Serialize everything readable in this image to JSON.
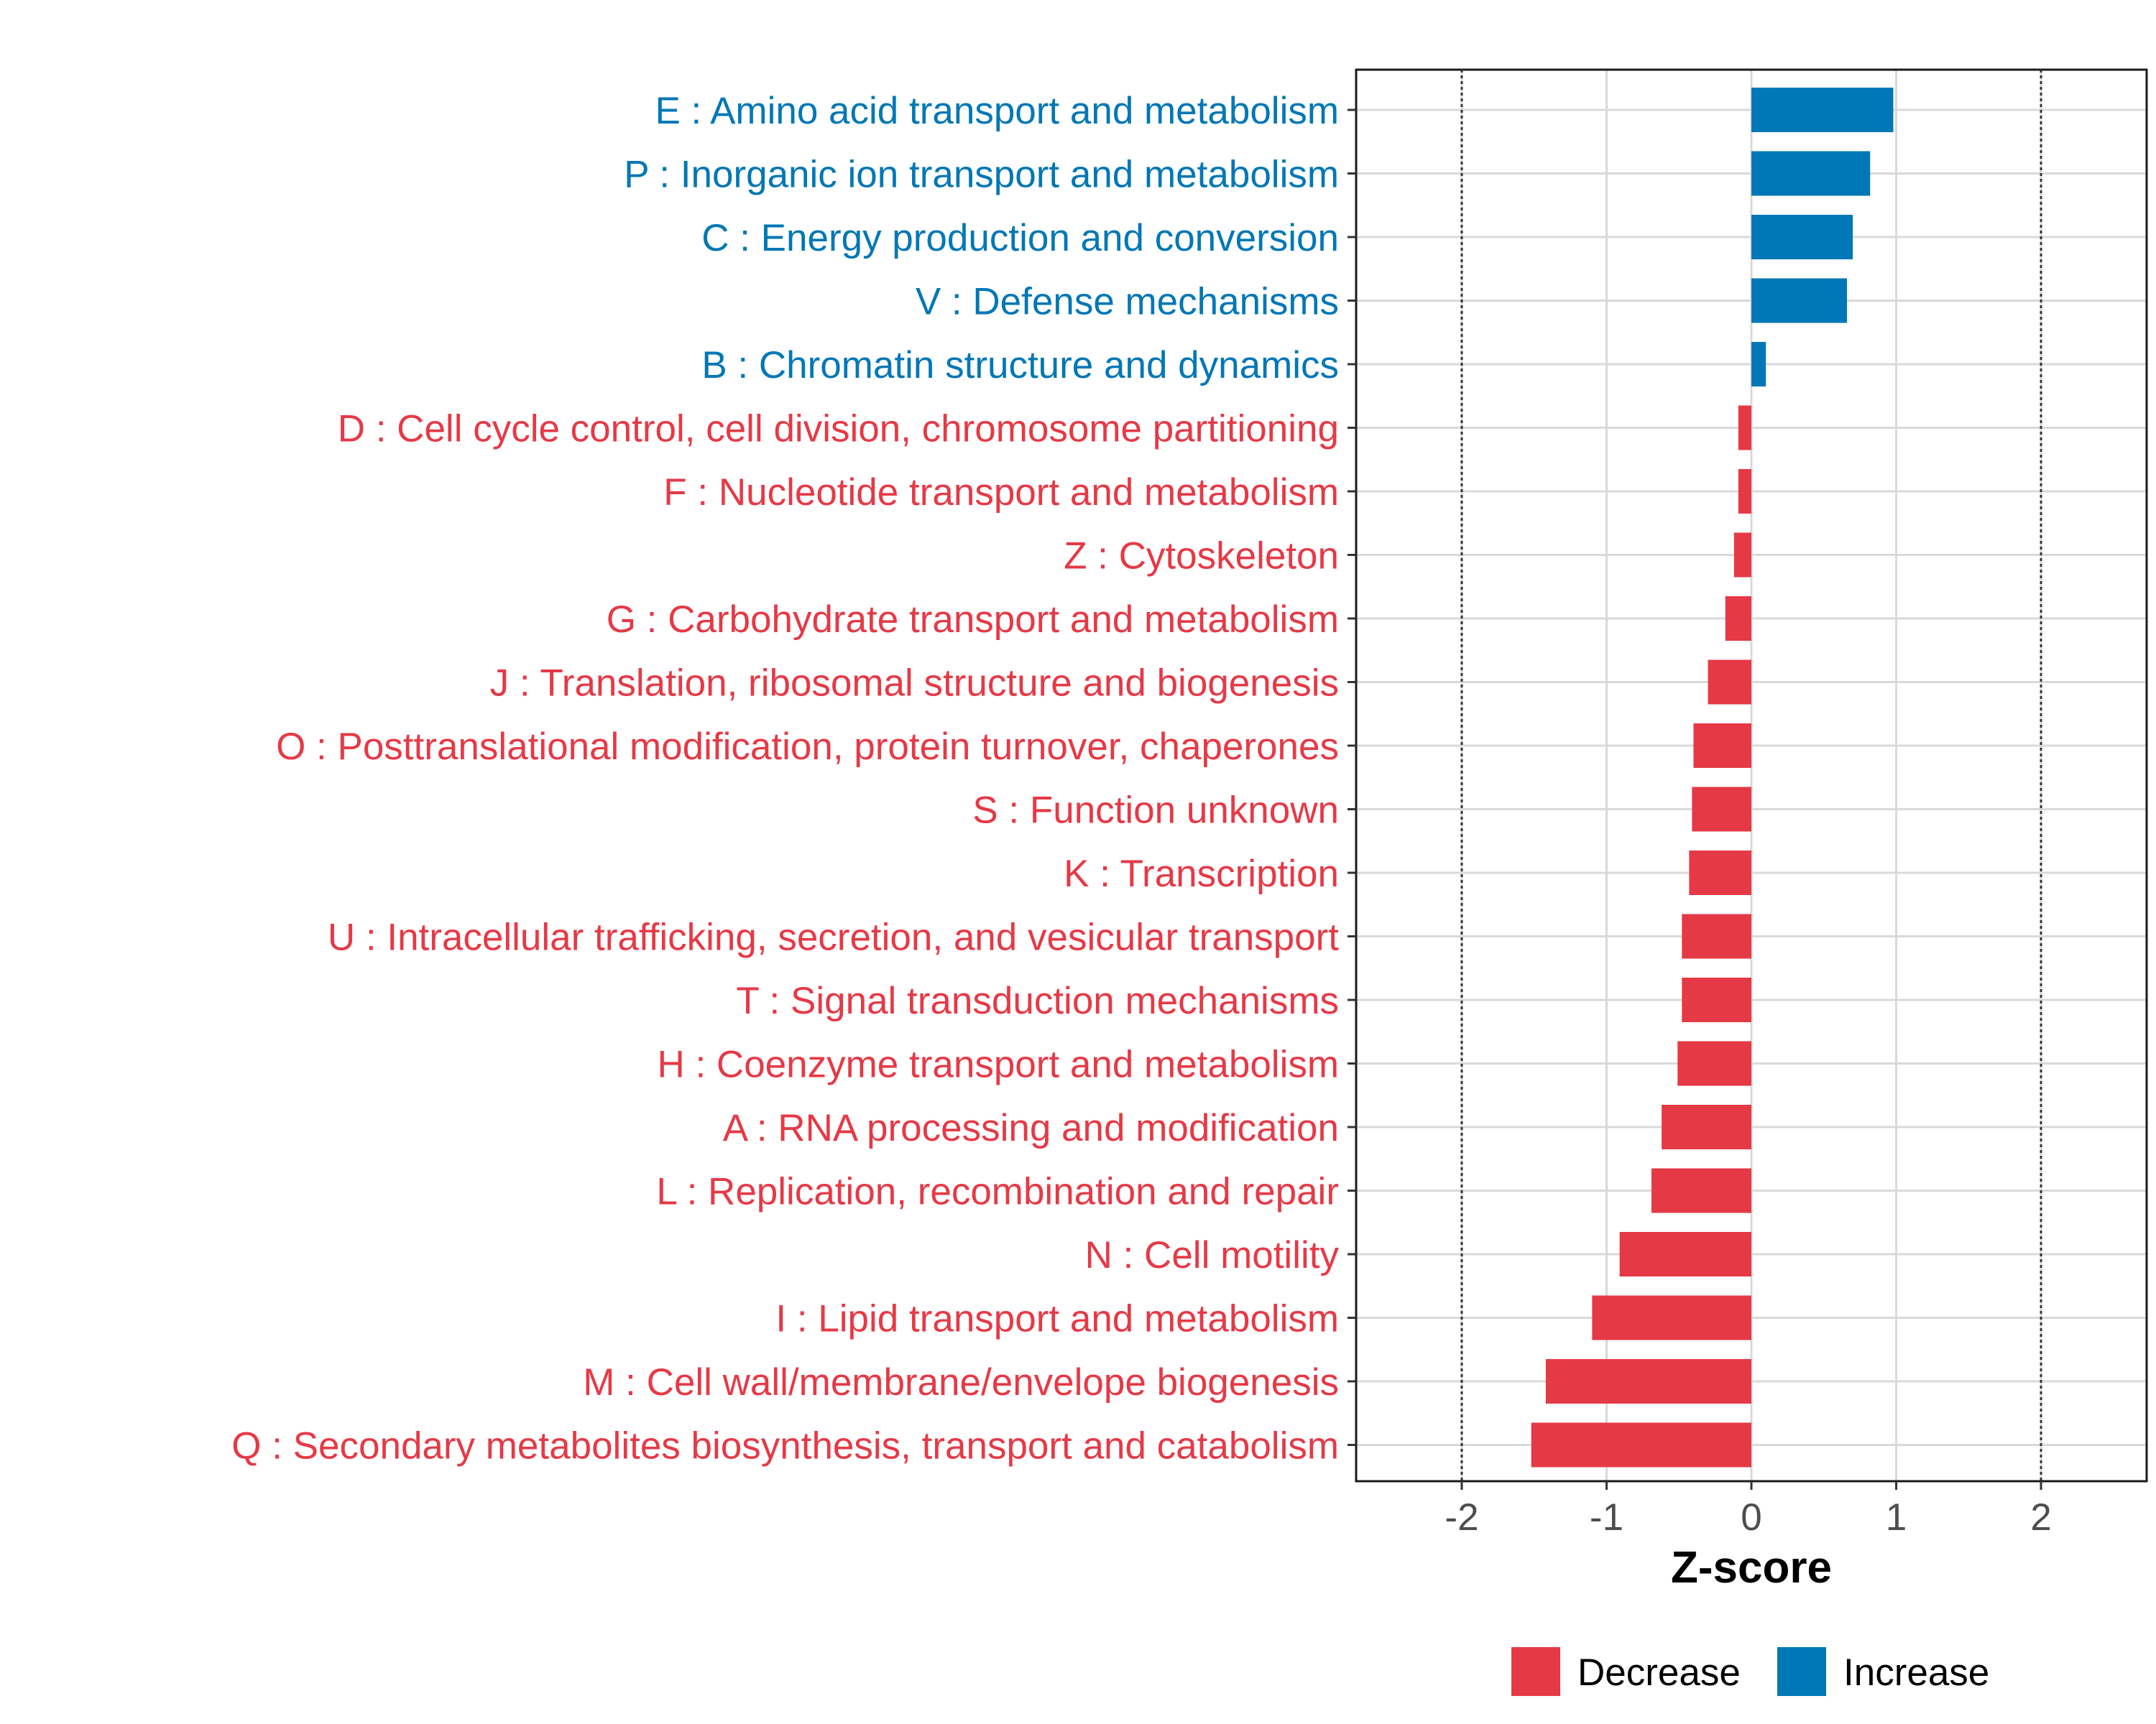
{
  "chart_data": {
    "type": "bar",
    "orientation": "horizontal",
    "title": "",
    "xlabel": "Z-score",
    "ylabel": "",
    "xlim": [
      -2.75,
      2.75
    ],
    "xticks": [
      "-2",
      "-1",
      "0",
      "1",
      "2"
    ],
    "reference_lines": [
      -2,
      2
    ],
    "grid": true,
    "legend_position": "bottom",
    "colors": {
      "Decrease": "#E63946",
      "Increase": "#0077B6"
    },
    "legend": [
      {
        "label": "Decrease",
        "color": "#E63946"
      },
      {
        "label": "Increase",
        "color": "#0077B6"
      }
    ],
    "categories": [
      "E : Amino acid transport and metabolism",
      "P : Inorganic ion transport and metabolism",
      "C : Energy production and conversion",
      "V : Defense mechanisms",
      "B : Chromatin structure and dynamics",
      "D : Cell cycle control, cell division, chromosome partitioning",
      "F : Nucleotide transport and metabolism",
      "Z : Cytoskeleton",
      "G : Carbohydrate transport and metabolism",
      "J : Translation, ribosomal structure and biogenesis",
      "O : Posttranslational modification, protein turnover, chaperones",
      "S : Function unknown",
      "K : Transcription",
      "U : Intracellular trafficking, secretion, and vesicular transport",
      "T : Signal transduction mechanisms",
      "H : Coenzyme transport and metabolism",
      "A : RNA processing and modification",
      "L : Replication, recombination and repair",
      "N : Cell motility",
      "I : Lipid transport and metabolism",
      "M : Cell wall/membrane/envelope biogenesis",
      "Q : Secondary metabolites biosynthesis, transport and catabolism"
    ],
    "values": [
      0.98,
      0.82,
      0.7,
      0.66,
      0.1,
      -0.09,
      -0.09,
      -0.12,
      -0.18,
      -0.3,
      -0.4,
      -0.41,
      -0.43,
      -0.48,
      -0.48,
      -0.51,
      -0.62,
      -0.69,
      -0.91,
      -1.1,
      -1.42,
      -1.52
    ]
  }
}
